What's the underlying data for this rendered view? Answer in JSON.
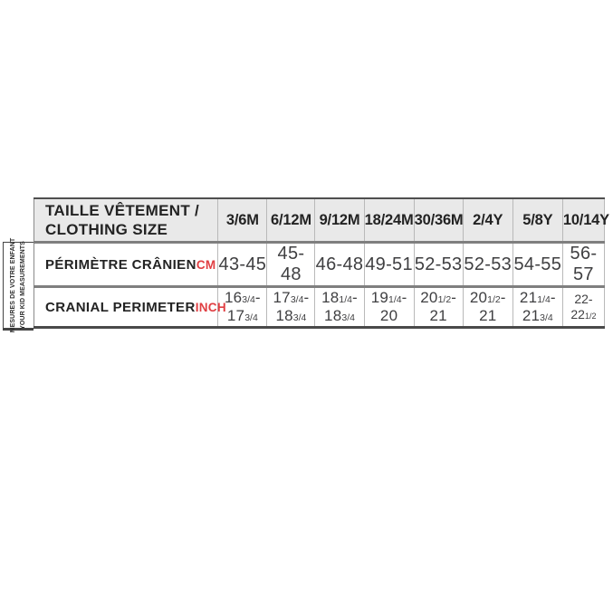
{
  "chart_data": {
    "type": "table",
    "header": {
      "title_line1": "TAILLE VÊTEMENT /",
      "title_line2": "CLOTHING SIZE",
      "columns": [
        "3/6M",
        "6/12M",
        "9/12M",
        "18/24M",
        "30/36M",
        "2/4Y",
        "5/8Y",
        "10/14Y"
      ]
    },
    "rows": {
      "cm": {
        "label": "PÉRIMÈTRE CRÂNIEN",
        "unit": "CM",
        "values": [
          "43-45",
          "45-48",
          "46-48",
          "49-51",
          "52-53",
          "52-53",
          "54-55",
          "56-57"
        ]
      },
      "inch": {
        "label": "CRANIAL PERIMETER",
        "unit": "INCH",
        "values": [
          "16¾-17¾",
          "17¾-18¾",
          "18¼-18¾",
          "19¼-20",
          "20½-21",
          "20½-21",
          "21¼-21¾",
          "22-22½"
        ],
        "lines": [
          [
            "16¾-",
            "17¾"
          ],
          [
            "17¾-",
            "18¾"
          ],
          [
            "18¼-",
            "18¾"
          ],
          [
            "19¼-",
            "20"
          ],
          [
            "20½-",
            "21"
          ],
          [
            "20½-",
            "21"
          ],
          [
            "21¼-",
            "21¾"
          ],
          [
            "22-22½"
          ]
        ]
      }
    },
    "side_note": {
      "line1": "MESURES DE VOTRE ENFANT",
      "line2": "YOUR KID MEASUREMENTS"
    },
    "colors": {
      "accent_red": "#e03e42",
      "header_bg": "#e9e9e9",
      "rule_gray": "#7f7f7f",
      "text_dark": "#232323"
    }
  }
}
